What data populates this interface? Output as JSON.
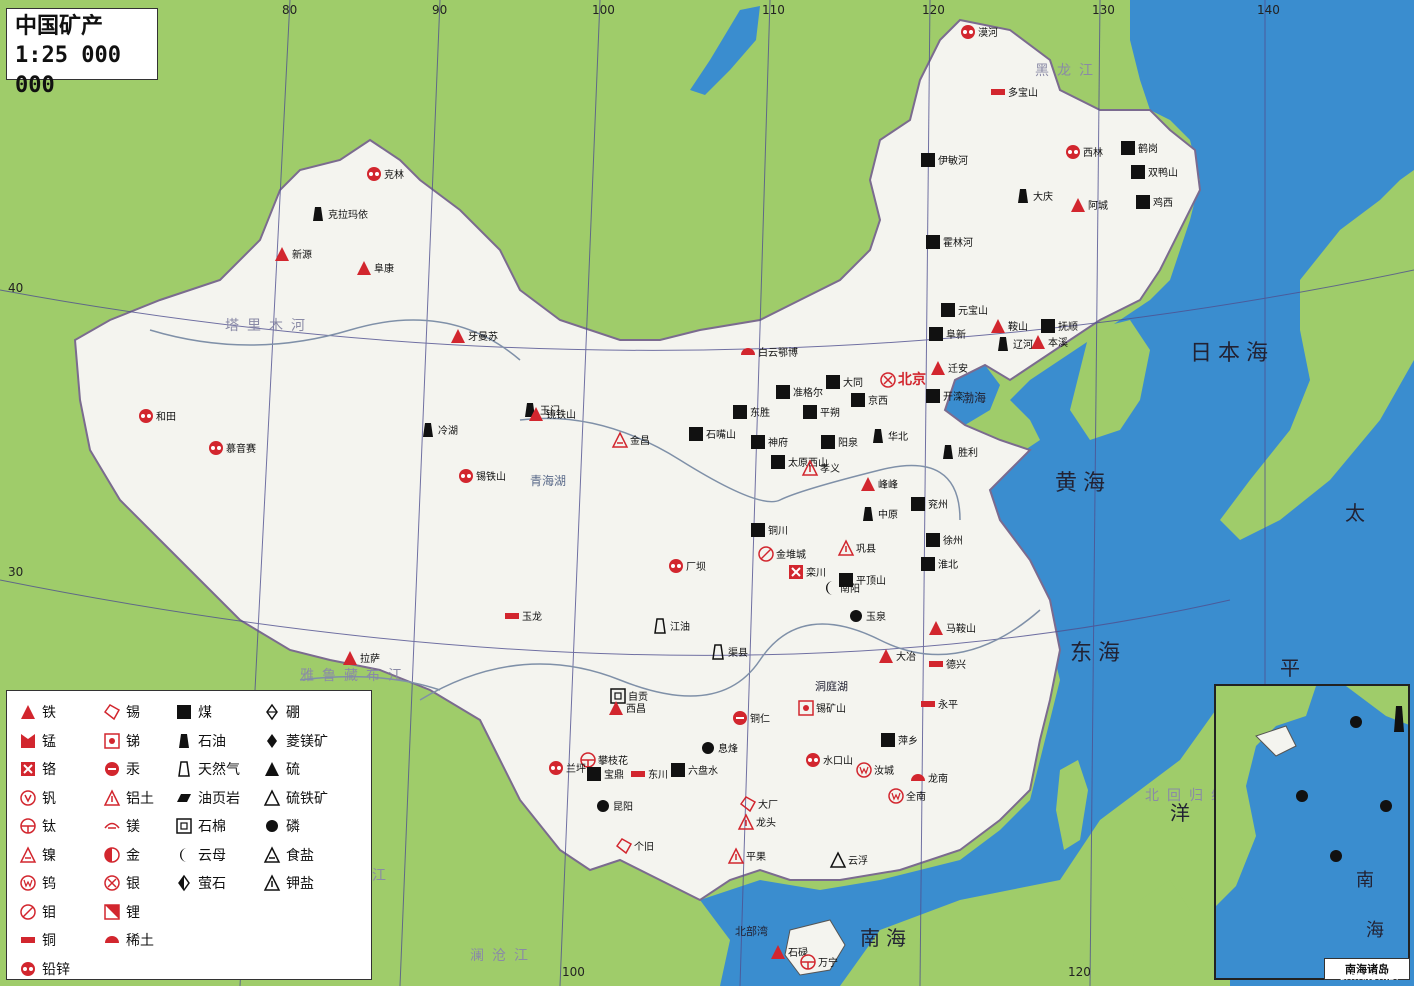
{
  "title": {
    "name": "中国矿产",
    "scale": "1:25 000 000"
  },
  "colors": {
    "land": "#f4f4ef",
    "neighbor": "#9fcc6a",
    "sea": "#3a8dcf",
    "symbol_red": "#d2262e",
    "symbol_black": "#111111"
  },
  "graticule": {
    "top_lon": [
      "80",
      "90",
      "100",
      "110",
      "120",
      "130",
      "140"
    ],
    "bottom_lon": [
      "100",
      "120"
    ],
    "lat": [
      "40",
      "30"
    ]
  },
  "water_labels": [
    "日本海",
    "黄海",
    "东海",
    "太",
    "平",
    "洋",
    "南海",
    "北部湾",
    "渤海",
    "洞庭湖",
    "青海湖"
  ],
  "river_labels": [
    "塔里木河",
    "雅鲁藏布江",
    "黑龙江",
    "怒江",
    "澜沧江",
    "北回归线"
  ],
  "cities": [
    "漠河",
    "多宝山",
    "西林",
    "鹤岗",
    "双鸭山",
    "伊敏河",
    "大庆",
    "阿城",
    "鸡西",
    "霍林河",
    "元宝山",
    "鞍山",
    "抚顺",
    "本溪",
    "阜新",
    "辽河",
    "迁安",
    "北京",
    "京西",
    "开滦",
    "白云鄂博",
    "准格尔",
    "大同",
    "东胜",
    "平朔",
    "神府",
    "石嘴山",
    "阳泉",
    "太原西山",
    "孝义",
    "华北",
    "胜利",
    "克拉玛依",
    "克林",
    "新源",
    "阜康",
    "牙曼苏",
    "和田",
    "慕音赛",
    "冷湖",
    "玉门",
    "镜铁山",
    "锡铁山",
    "金昌",
    "铜川",
    "峰峰",
    "兖州",
    "中原",
    "巩县",
    "徐州",
    "淮北",
    "厂坝",
    "金堆城",
    "栾川",
    "平顶山",
    "南阳",
    "玉泉",
    "马鞍山",
    "大冶",
    "德兴",
    "永平",
    "江油",
    "渠县",
    "自贡",
    "西昌",
    "攀枝花",
    "兰坪",
    "宝鼎",
    "东川",
    "昆阳",
    "六盘水",
    "铜仁",
    "息烽",
    "锡矿山",
    "萍乡",
    "水口山",
    "汝城",
    "龙南",
    "全南",
    "大厂",
    "龙头",
    "个旧",
    "平果",
    "云浮",
    "石碌",
    "万宁",
    "玉龙",
    "拉萨"
  ],
  "legend": [
    {
      "icon": "iron",
      "label": "铁"
    },
    {
      "icon": "manganese",
      "label": "锰"
    },
    {
      "icon": "chromium",
      "label": "铬"
    },
    {
      "icon": "vanadium",
      "label": "钒"
    },
    {
      "icon": "titanium",
      "label": "钛"
    },
    {
      "icon": "nickel",
      "label": "镍"
    },
    {
      "icon": "tungsten",
      "label": "钨"
    },
    {
      "icon": "molybdenum",
      "label": "钼"
    },
    {
      "icon": "copper",
      "label": "铜"
    },
    {
      "icon": "lead-zinc",
      "label": "铅锌"
    },
    {
      "icon": "tin",
      "label": "锡"
    },
    {
      "icon": "antimony",
      "label": "锑"
    },
    {
      "icon": "mercury",
      "label": "汞"
    },
    {
      "icon": "bauxite",
      "label": "铝土"
    },
    {
      "icon": "magnesium",
      "label": "镁"
    },
    {
      "icon": "gold",
      "label": "金"
    },
    {
      "icon": "silver",
      "label": "银"
    },
    {
      "icon": "lithium",
      "label": "锂"
    },
    {
      "icon": "rare-earth",
      "label": "稀土"
    },
    {
      "icon": "coal",
      "label": "煤"
    },
    {
      "icon": "oil",
      "label": "石油"
    },
    {
      "icon": "natural-gas",
      "label": "天然气"
    },
    {
      "icon": "oil-shale",
      "label": "油页岩"
    },
    {
      "icon": "asbestos",
      "label": "石棉"
    },
    {
      "icon": "mica",
      "label": "云母"
    },
    {
      "icon": "fluorite",
      "label": "萤石"
    },
    {
      "icon": "boron",
      "label": "硼"
    },
    {
      "icon": "magnesite",
      "label": "菱镁矿"
    },
    {
      "icon": "sulfur",
      "label": "硫"
    },
    {
      "icon": "pyrite",
      "label": "硫铁矿"
    },
    {
      "icon": "phosphorus",
      "label": "磷"
    },
    {
      "icon": "salt",
      "label": "食盐"
    },
    {
      "icon": "potash",
      "label": "钾盐"
    }
  ],
  "inset": {
    "title": "南海诸岛",
    "labels": [
      "南",
      "海"
    ]
  },
  "credit": "DATANG.NET"
}
